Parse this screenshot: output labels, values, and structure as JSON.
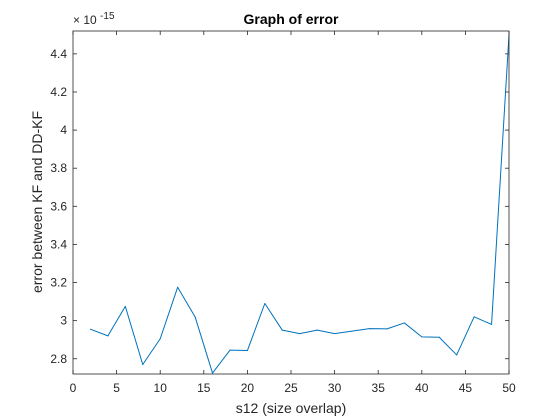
{
  "chart_data": {
    "type": "line",
    "title": "Graph of error",
    "xlabel": "s12 (size overlap)",
    "ylabel": "error between KF and DD-KF",
    "y_exponent_label": "× 10^{-15}",
    "y_exponent_base": "× 10",
    "y_exponent_power": "-15",
    "xlim": [
      0,
      50
    ],
    "ylim": [
      2.72,
      4.52
    ],
    "x_ticks": [
      0,
      5,
      10,
      15,
      20,
      25,
      30,
      35,
      40,
      45,
      50
    ],
    "y_ticks": [
      2.8,
      3,
      3.2,
      3.4,
      3.6,
      3.8,
      4,
      4.2,
      4.4
    ],
    "y_tick_labels": [
      "2.8",
      "3",
      "3.2",
      "3.4",
      "3.6",
      "3.8",
      "4",
      "4.2",
      "4.4"
    ],
    "grid": false,
    "line_color": "#0072BD",
    "series": [
      {
        "x": [
          2,
          4,
          6,
          8,
          10,
          12,
          14,
          16,
          18,
          20,
          22,
          24,
          26,
          28,
          30,
          32,
          34,
          36,
          38,
          40,
          42,
          44,
          46,
          48,
          50
        ],
        "y": [
          2.955,
          2.92,
          3.075,
          2.77,
          2.905,
          3.175,
          3.02,
          2.725,
          2.845,
          2.843,
          3.09,
          2.95,
          2.932,
          2.95,
          2.932,
          2.945,
          2.958,
          2.957,
          2.988,
          2.915,
          2.913,
          2.82,
          3.02,
          2.98,
          4.5
        ]
      }
    ]
  }
}
